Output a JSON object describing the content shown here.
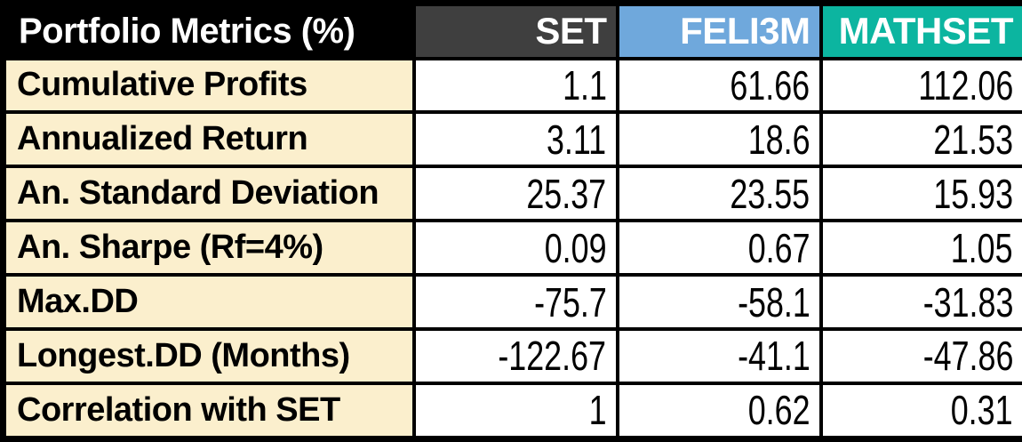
{
  "chart_data": {
    "type": "table",
    "title": "Portfolio Metrics (%)",
    "columns": [
      "SET",
      "FELI3M",
      "MATHSET"
    ],
    "rows": [
      {
        "label": "Cumulative Profits",
        "values": [
          "1.1",
          "61.66",
          "112.06"
        ]
      },
      {
        "label": "Annualized Return",
        "values": [
          "3.11",
          "18.6",
          "21.53"
        ]
      },
      {
        "label": "An. Standard Deviation",
        "values": [
          "25.37",
          "23.55",
          "15.93"
        ]
      },
      {
        "label": "An. Sharpe (Rf=4%)",
        "values": [
          "0.09",
          "0.67",
          "1.05"
        ]
      },
      {
        "label": "Max.DD",
        "values": [
          "-75.7",
          "-58.1",
          "-31.83"
        ]
      },
      {
        "label": "Longest.DD (Months)",
        "values": [
          "-122.67",
          "-41.1",
          "-47.86"
        ]
      },
      {
        "label": "Correlation with SET",
        "values": [
          "1",
          "0.62",
          "0.31"
        ]
      }
    ]
  },
  "colors": {
    "title_bg": "#000000",
    "header_text": "#FFFFFF",
    "set_header_bg": "#3F3F3F",
    "feli3m_header_bg": "#6FA8DC",
    "mathset_header_bg": "#0CB5A0",
    "label_bg": "#FBEFCD",
    "value_bg": "#FFFFFF",
    "border": "#000000",
    "text": "#000000"
  }
}
